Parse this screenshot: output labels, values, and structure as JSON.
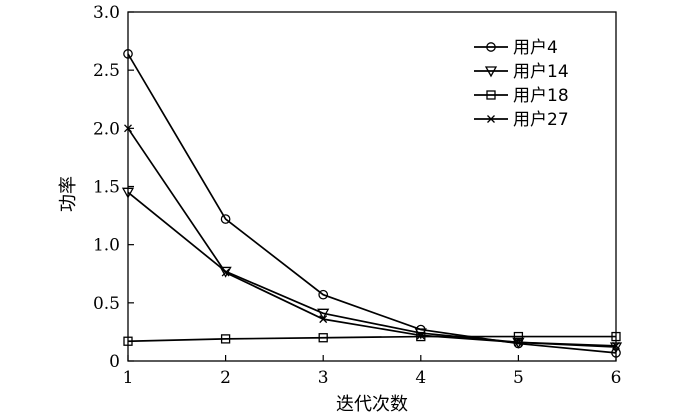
{
  "chart_data": {
    "type": "line",
    "title": "",
    "xlabel": "迭代次数",
    "ylabel": "功率",
    "xlim": [
      1,
      6
    ],
    "ylim": [
      0,
      3.0
    ],
    "xticks": [
      "1",
      "2",
      "3",
      "4",
      "5",
      "6"
    ],
    "yticks": [
      "0",
      "0.5",
      "1.0",
      "1.5",
      "2.0",
      "2.5",
      "3.0"
    ],
    "grid": false,
    "legend_position": "top-right",
    "x": [
      1,
      2,
      3,
      4,
      5,
      6
    ],
    "series": [
      {
        "name": "用户4",
        "marker": "circle",
        "values": [
          2.64,
          1.22,
          0.57,
          0.27,
          0.15,
          0.07
        ]
      },
      {
        "name": "用户14",
        "marker": "triangle-down",
        "values": [
          1.45,
          0.77,
          0.41,
          0.24,
          0.16,
          0.12
        ]
      },
      {
        "name": "用户18",
        "marker": "square",
        "values": [
          0.17,
          0.19,
          0.2,
          0.21,
          0.21,
          0.21
        ]
      },
      {
        "name": "用户27",
        "marker": "x",
        "values": [
          2.0,
          0.76,
          0.36,
          0.22,
          0.16,
          0.13
        ]
      }
    ]
  }
}
